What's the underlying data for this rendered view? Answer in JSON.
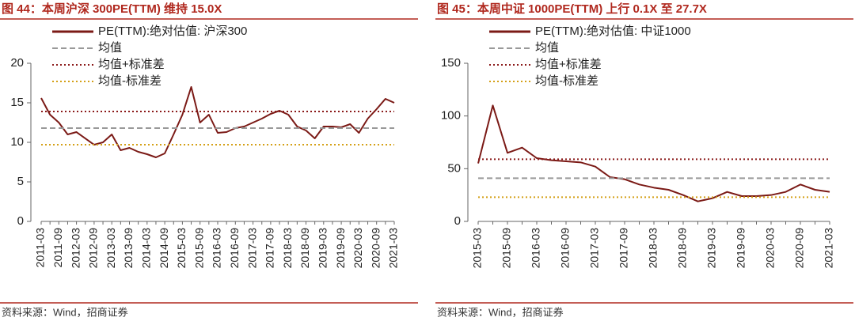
{
  "chart_data": [
    {
      "type": "line",
      "title": "图 44：本周沪深 300PE(TTM) 维持 15.0X",
      "source": "资料来源：Wind，招商证券",
      "categories": [
        "2011-03",
        null,
        "2011-09",
        null,
        "2012-03",
        null,
        "2012-09",
        null,
        "2013-03",
        null,
        "2013-09",
        null,
        "2014-03",
        null,
        "2014-09",
        null,
        "2015-03",
        null,
        "2015-09",
        null,
        "2016-03",
        null,
        "2016-09",
        null,
        "2017-03",
        null,
        "2017-09",
        null,
        "2018-03",
        null,
        "2018-09",
        null,
        "2019-03",
        null,
        "2019-09",
        null,
        "2020-03",
        null,
        "2020-09",
        null,
        "2021-03"
      ],
      "ylim": [
        0,
        20
      ],
      "yticks": [
        0,
        5,
        10,
        15,
        20
      ],
      "series": [
        {
          "name": "PE(TTM):绝对估值: 沪深300",
          "color": "#7b1a16",
          "values": [
            15.6,
            13.5,
            12.5,
            11.0,
            11.3,
            10.5,
            9.7,
            10.0,
            11.0,
            9.0,
            9.3,
            8.8,
            8.5,
            8.1,
            8.6,
            11.0,
            13.5,
            17.0,
            12.5,
            13.5,
            11.2,
            11.3,
            11.8,
            12.0,
            12.5,
            13.0,
            13.6,
            14.0,
            13.5,
            12.0,
            11.5,
            10.5,
            12.0,
            12.0,
            11.9,
            12.3,
            11.2,
            13.0,
            14.2,
            15.5,
            15.0
          ]
        },
        {
          "name": "均值",
          "color": "#999999",
          "dash": "dashed",
          "value": 11.8
        },
        {
          "name": "均值+标准差",
          "color": "#8b1a1a",
          "dash": "dotted",
          "value": 13.9
        },
        {
          "name": "均值-标准差",
          "color": "#d4a017",
          "dash": "dotted",
          "value": 9.7
        }
      ]
    },
    {
      "type": "line",
      "title": "图 45：本周中证 1000PE(TTM) 上行 0.1X 至 27.7X",
      "source": "资料来源：Wind，招商证券",
      "categories": [
        "2015-03",
        null,
        "2015-09",
        null,
        "2016-03",
        null,
        "2016-09",
        null,
        "2017-03",
        null,
        "2017-09",
        null,
        "2018-03",
        null,
        "2018-09",
        null,
        "2019-03",
        null,
        "2019-09",
        null,
        "2020-03",
        null,
        "2020-09",
        null,
        "2021-03"
      ],
      "ylim": [
        0,
        150
      ],
      "yticks": [
        0,
        50,
        100,
        150
      ],
      "series": [
        {
          "name": "PE(TTM):绝对估值: 中证1000",
          "color": "#7b1a16",
          "values": [
            55,
            110,
            65,
            70,
            60,
            58,
            57,
            56,
            52,
            42,
            40,
            35,
            32,
            30,
            25,
            19,
            22,
            28,
            24,
            24,
            25,
            28,
            35,
            30,
            28
          ]
        },
        {
          "name": "均值",
          "color": "#999999",
          "dash": "dashed",
          "value": 41
        },
        {
          "name": "均值+标准差",
          "color": "#8b1a1a",
          "dash": "dotted",
          "value": 59
        },
        {
          "name": "均值-标准差",
          "color": "#d4a017",
          "dash": "dotted",
          "value": 23
        }
      ]
    }
  ]
}
